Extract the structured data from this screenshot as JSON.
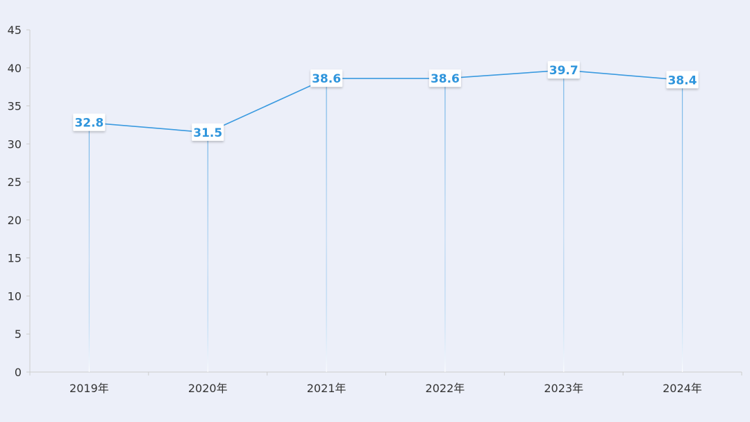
{
  "chart_data": {
    "type": "line",
    "categories": [
      "2019年",
      "2020年",
      "2021年",
      "2022年",
      "2023年",
      "2024年"
    ],
    "values": [
      32.8,
      31.5,
      38.6,
      38.6,
      39.7,
      38.4
    ],
    "title": "",
    "xlabel": "",
    "ylabel": "",
    "ylim": [
      0,
      45
    ],
    "yticks": [
      0,
      5,
      10,
      15,
      20,
      25,
      30,
      35,
      40,
      45
    ],
    "grid": false,
    "legend": "none",
    "data_labels": true,
    "colors": {
      "line": "#3a9ae0",
      "label_text": "#2f95dc",
      "label_box": "#ffffff",
      "axis": "#cccccc",
      "background": "#eceff9"
    }
  }
}
